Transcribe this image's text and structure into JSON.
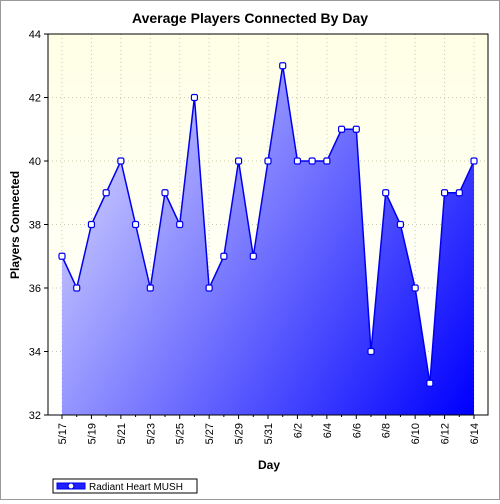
{
  "chart_data": {
    "type": "area",
    "title": "Average Players Connected By Day",
    "xlabel": "Day",
    "ylabel": "Players Connected",
    "ylim": [
      32,
      44
    ],
    "yticks": [
      32,
      34,
      36,
      38,
      40,
      42,
      44
    ],
    "x": [
      "5/17",
      "5/18",
      "5/19",
      "5/20",
      "5/21",
      "5/22",
      "5/23",
      "5/24",
      "5/25",
      "5/26",
      "5/27",
      "5/28",
      "5/29",
      "5/30",
      "5/31",
      "6/1",
      "6/2",
      "6/3",
      "6/4",
      "6/5",
      "6/6",
      "6/7",
      "6/8",
      "6/9",
      "6/10",
      "6/11",
      "6/12",
      "6/13",
      "6/14"
    ],
    "xtick_labels": [
      "5/17",
      "5/19",
      "5/21",
      "5/23",
      "5/25",
      "5/27",
      "5/29",
      "5/31",
      "6/2",
      "6/4",
      "6/6",
      "6/8",
      "6/10",
      "6/12",
      "6/14"
    ],
    "series": [
      {
        "name": "Radiant Heart MUSH",
        "values": [
          37,
          36,
          38,
          39,
          40,
          38,
          36,
          39,
          38,
          42,
          36,
          37,
          40,
          37,
          40,
          43,
          40,
          40,
          40,
          41,
          41,
          34,
          39,
          38,
          36,
          33,
          39,
          39,
          40
        ]
      }
    ],
    "grid": true,
    "legend_position": "bottom-left",
    "colors": {
      "plot_background_top": "#ffffe6",
      "plot_background_bottom": "#ffffff",
      "line": "#0000ee",
      "fill_light": "#d2d2ff",
      "fill_dark": "#0000ff",
      "marker_fill": "#ffffff"
    }
  }
}
